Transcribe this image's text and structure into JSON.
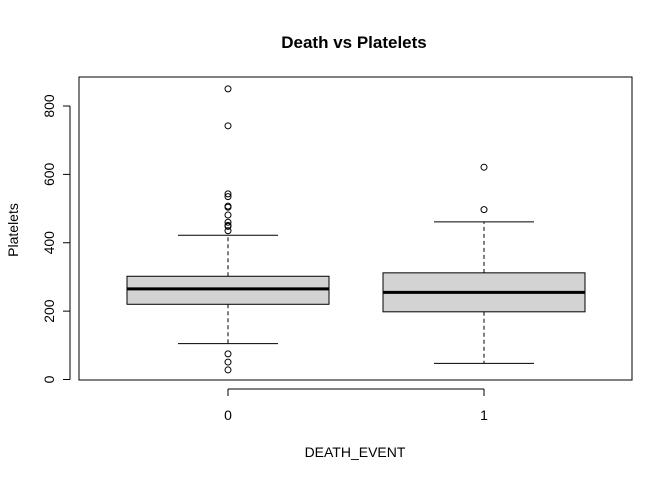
{
  "chart_data": {
    "type": "boxplot",
    "title": "Death vs Platelets",
    "xlabel": "DEATH_EVENT",
    "ylabel": "Platelets",
    "categories": [
      "0",
      "1"
    ],
    "ylim": [
      0,
      850
    ],
    "yticks": [
      0,
      200,
      400,
      600,
      800
    ],
    "grid": false,
    "legend": "none",
    "box_fill": "#d3d3d3",
    "boxes": [
      {
        "category": "0",
        "whisker_low": 105,
        "q1": 220,
        "median": 265,
        "q3": 302,
        "whisker_high": 422,
        "outliers": [
          850,
          742,
          543,
          535,
          507,
          504,
          481,
          460,
          451,
          448,
          435,
          75,
          51,
          28
        ]
      },
      {
        "category": "1",
        "whisker_low": 47,
        "q1": 198,
        "median": 255,
        "q3": 312,
        "whisker_high": 461,
        "outliers": [
          621,
          497
        ]
      }
    ]
  }
}
